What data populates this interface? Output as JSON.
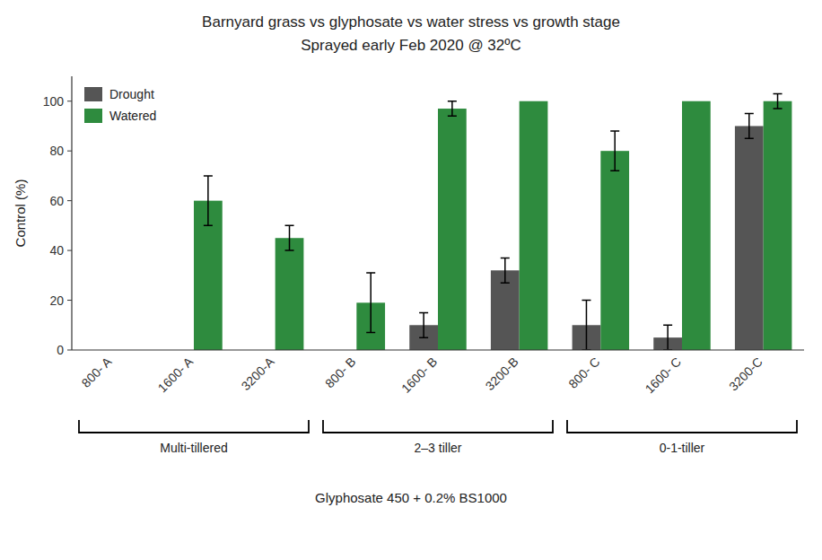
{
  "chart_data": {
    "type": "bar",
    "title": "Barnyard grass vs glyphosate vs water stress vs growth stage",
    "subtitle": "Sprayed early Feb 2020 @ 32ºC",
    "x_label": "Glyphosate 450 + 0.2% BS1000",
    "y_label": "Control (%)",
    "categories": [
      "800- A",
      "1600- A",
      "3200-A",
      "800- B",
      "1600- B",
      "3200-B",
      "800- C",
      "1600- C",
      "3200-C"
    ],
    "series": [
      {
        "name": "Drought",
        "color": "#555555",
        "values": [
          0,
          0,
          0,
          0,
          10,
          32,
          10,
          5,
          90
        ],
        "errors": [
          0,
          0,
          0,
          0,
          5,
          5,
          10,
          5,
          5
        ]
      },
      {
        "name": "Watered",
        "color": "#2e8b3e",
        "values": [
          0,
          60,
          45,
          19,
          97,
          100,
          80,
          100,
          100
        ],
        "errors": [
          0,
          10,
          5,
          12,
          3,
          0,
          8,
          0,
          3
        ]
      }
    ],
    "groups": [
      {
        "label": "Multi-tillered",
        "range": [
          0,
          2
        ]
      },
      {
        "label": "2–3 tiller",
        "range": [
          3,
          5
        ]
      },
      {
        "label": "0-1-tiller",
        "range": [
          6,
          8
        ]
      }
    ],
    "ylim": [
      0,
      110
    ],
    "yticks": [
      0,
      20,
      40,
      60,
      80,
      100
    ],
    "legend": "upper left",
    "grid": false
  }
}
